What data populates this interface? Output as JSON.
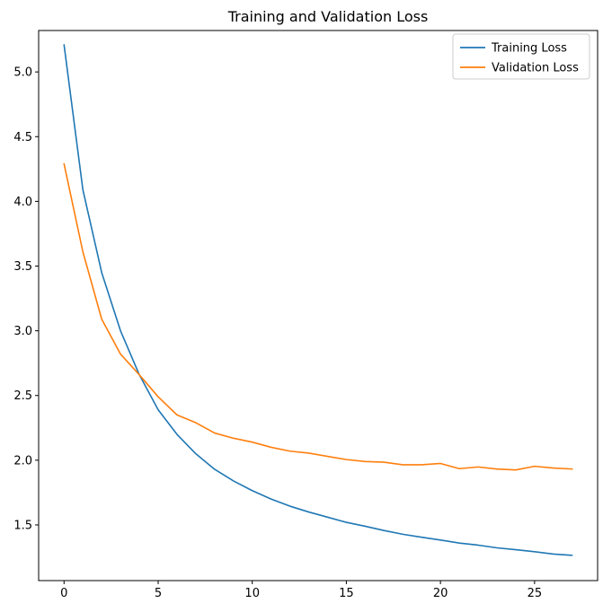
{
  "chart_data": {
    "type": "line",
    "title": "Training and Validation Loss",
    "xlabel": "",
    "ylabel": "",
    "xlim": [
      -1.35,
      28.35
    ],
    "ylim": [
      1.07,
      5.32
    ],
    "xticks": [
      0,
      5,
      10,
      15,
      20,
      25
    ],
    "yticks": [
      1.5,
      2.0,
      2.5,
      3.0,
      3.5,
      4.0,
      4.5,
      5.0
    ],
    "ytick_labels": [
      "1.5",
      "2.0",
      "2.5",
      "3.0",
      "3.5",
      "4.0",
      "4.5",
      "5.0"
    ],
    "grid": false,
    "legend_position": "top-right",
    "x": [
      0,
      1,
      2,
      3,
      4,
      5,
      6,
      7,
      8,
      9,
      10,
      11,
      12,
      13,
      14,
      15,
      16,
      17,
      18,
      19,
      20,
      21,
      22,
      23,
      24,
      25,
      26,
      27
    ],
    "series": [
      {
        "name": "Training Loss",
        "color": "#1f77b4",
        "values": [
          5.21,
          4.09,
          3.45,
          3.0,
          2.66,
          2.39,
          2.2,
          2.05,
          1.93,
          1.84,
          1.765,
          1.7,
          1.645,
          1.6,
          1.56,
          1.52,
          1.49,
          1.457,
          1.428,
          1.405,
          1.383,
          1.36,
          1.344,
          1.323,
          1.309,
          1.293,
          1.275,
          1.265
        ]
      },
      {
        "name": "Validation Loss",
        "color": "#ff7f0e",
        "values": [
          4.29,
          3.61,
          3.09,
          2.82,
          2.66,
          2.49,
          2.35,
          2.29,
          2.21,
          2.17,
          2.14,
          2.1,
          2.07,
          2.055,
          2.03,
          2.005,
          1.99,
          1.985,
          1.965,
          1.965,
          1.975,
          1.935,
          1.948,
          1.932,
          1.925,
          1.953,
          1.94,
          1.932
        ]
      }
    ]
  }
}
